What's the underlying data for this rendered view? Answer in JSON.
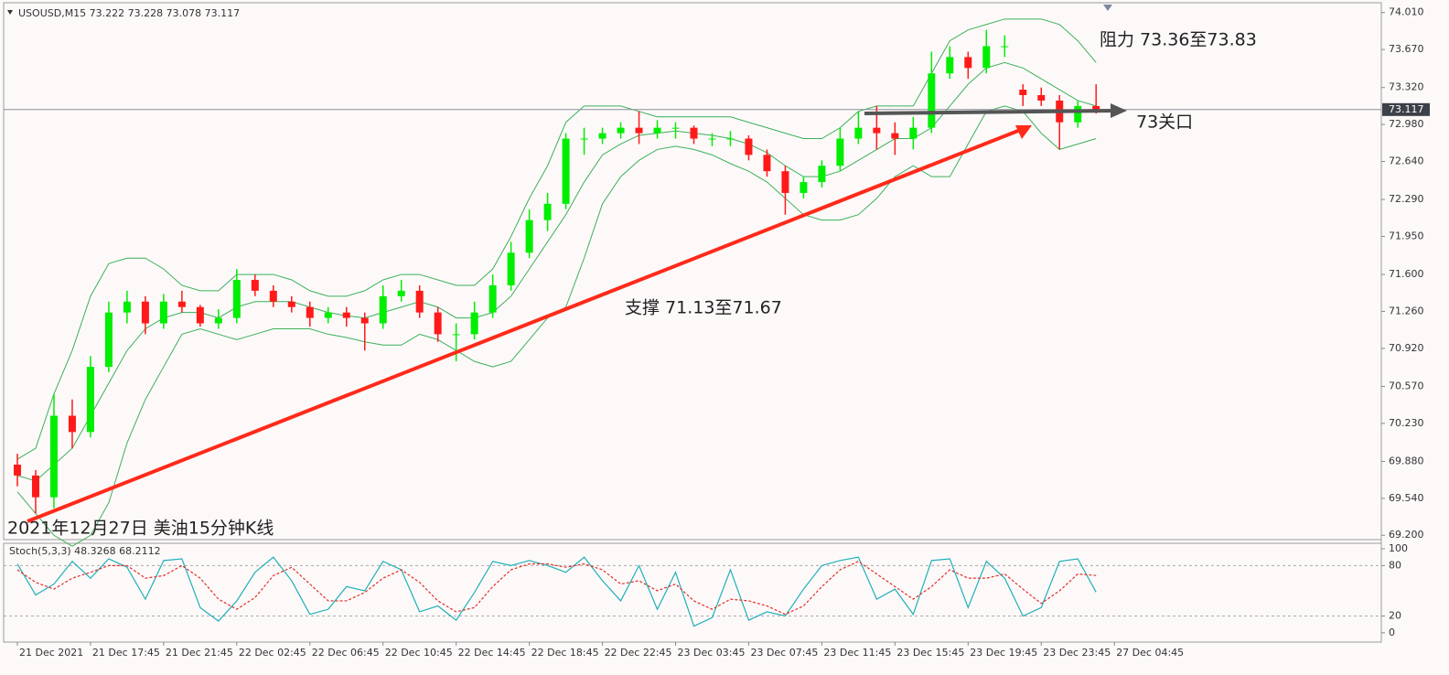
{
  "chart_data": [
    {
      "type": "candlestick",
      "title": "USOUSD,M15  73.222 73.228 73.078 73.117",
      "annotations": [
        "阻力 73.36至73.83",
        "73关口",
        "支撑 71.13至71.67",
        "2021年12月27日 美油15分钟K线"
      ],
      "xlim": [
        -0.75,
        74.6
      ],
      "xticks": [
        {
          "value": 0,
          "label": "21 Dec 2021"
        },
        {
          "value": 4,
          "label": "21 Dec 17:45"
        },
        {
          "value": 8,
          "label": "21 Dec 21:45"
        },
        {
          "value": 12,
          "label": "22 Dec 02:45"
        },
        {
          "value": 16,
          "label": "22 Dec 06:45"
        },
        {
          "value": 20,
          "label": "22 Dec 10:45"
        },
        {
          "value": 24,
          "label": "22 Dec 14:45"
        },
        {
          "value": 28,
          "label": "22 Dec 18:45"
        },
        {
          "value": 32,
          "label": "22 Dec 22:45"
        },
        {
          "value": 36,
          "label": "23 Dec 03:45"
        },
        {
          "value": 40,
          "label": "23 Dec 07:45"
        },
        {
          "value": 44,
          "label": "23 Dec 11:45"
        },
        {
          "value": 48,
          "label": "23 Dec 15:45"
        },
        {
          "value": 52,
          "label": "23 Dec 19:45"
        },
        {
          "value": 56,
          "label": "23 Dec 23:45"
        },
        {
          "value": 60,
          "label": "27 Dec 04:45"
        }
      ],
      "ylim": [
        69.16,
        74.1
      ],
      "yticks": [
        {
          "value": 74.01,
          "label": "74.010"
        },
        {
          "value": 73.67,
          "label": "73.670"
        },
        {
          "value": 73.32,
          "label": "73.320"
        },
        {
          "value": 72.98,
          "label": "72.980"
        },
        {
          "value": 72.64,
          "label": "72.640"
        },
        {
          "value": 72.29,
          "label": "72.290"
        },
        {
          "value": 71.95,
          "label": "71.950"
        },
        {
          "value": 71.6,
          "label": "71.600"
        },
        {
          "value": 71.26,
          "label": "71.260"
        },
        {
          "value": 70.92,
          "label": "70.920"
        },
        {
          "value": 70.57,
          "label": "70.570"
        },
        {
          "value": 70.23,
          "label": "70.230"
        },
        {
          "value": 69.88,
          "label": "69.880"
        },
        {
          "value": 69.54,
          "label": "69.540"
        },
        {
          "value": 69.2,
          "label": "69.200"
        }
      ],
      "current_price": 73.117,
      "up_color": "#00ee00",
      "down_color": "#ff1a1a",
      "ohlc": [
        [
          69.85,
          69.95,
          69.65,
          69.75
        ],
        [
          69.75,
          69.8,
          69.4,
          69.55
        ],
        [
          69.55,
          70.5,
          69.45,
          70.3
        ],
        [
          70.3,
          70.45,
          70.0,
          70.15
        ],
        [
          70.15,
          70.85,
          70.1,
          70.75
        ],
        [
          70.75,
          71.35,
          70.7,
          71.25
        ],
        [
          71.25,
          71.45,
          71.15,
          71.35
        ],
        [
          71.35,
          71.4,
          71.05,
          71.15
        ],
        [
          71.15,
          71.42,
          71.1,
          71.35
        ],
        [
          71.35,
          71.45,
          71.25,
          71.3
        ],
        [
          71.3,
          71.32,
          71.12,
          71.15
        ],
        [
          71.15,
          71.28,
          71.1,
          71.2
        ],
        [
          71.2,
          71.65,
          71.15,
          71.55
        ],
        [
          71.55,
          71.6,
          71.4,
          71.45
        ],
        [
          71.45,
          71.5,
          71.3,
          71.35
        ],
        [
          71.35,
          71.4,
          71.25,
          71.3
        ],
        [
          71.3,
          71.35,
          71.12,
          71.2
        ],
        [
          71.2,
          71.3,
          71.15,
          71.25
        ],
        [
          71.25,
          71.3,
          71.12,
          71.2
        ],
        [
          71.2,
          71.25,
          70.9,
          71.15
        ],
        [
          71.15,
          71.5,
          71.1,
          71.4
        ],
        [
          71.4,
          71.55,
          71.35,
          71.45
        ],
        [
          71.45,
          71.5,
          71.2,
          71.25
        ],
        [
          71.25,
          71.3,
          70.98,
          71.05
        ],
        [
          71.05,
          71.15,
          70.8,
          71.05
        ],
        [
          71.05,
          71.35,
          71.0,
          71.25
        ],
        [
          71.25,
          71.6,
          71.2,
          71.5
        ],
        [
          71.5,
          71.9,
          71.45,
          71.8
        ],
        [
          71.8,
          72.2,
          71.75,
          72.1
        ],
        [
          72.1,
          72.35,
          72.0,
          72.25
        ],
        [
          72.25,
          72.9,
          72.2,
          72.85
        ],
        [
          72.85,
          72.95,
          72.7,
          72.85
        ],
        [
          72.85,
          72.95,
          72.8,
          72.9
        ],
        [
          72.9,
          73.0,
          72.85,
          72.95
        ],
        [
          72.95,
          73.1,
          72.8,
          72.9
        ],
        [
          72.9,
          73.02,
          72.85,
          72.95
        ],
        [
          72.95,
          73.0,
          72.85,
          72.95
        ],
        [
          72.95,
          72.97,
          72.8,
          72.85
        ],
        [
          72.85,
          72.9,
          72.78,
          72.85
        ],
        [
          72.85,
          72.92,
          72.78,
          72.85
        ],
        [
          72.85,
          72.88,
          72.65,
          72.7
        ],
        [
          72.7,
          72.75,
          72.5,
          72.55
        ],
        [
          72.55,
          72.6,
          72.15,
          72.35
        ],
        [
          72.35,
          72.5,
          72.3,
          72.45
        ],
        [
          72.45,
          72.65,
          72.4,
          72.6
        ],
        [
          72.6,
          72.95,
          72.55,
          72.85
        ],
        [
          72.85,
          73.1,
          72.8,
          72.95
        ],
        [
          72.95,
          73.15,
          72.75,
          72.9
        ],
        [
          72.9,
          73.0,
          72.7,
          72.85
        ],
        [
          72.85,
          73.05,
          72.75,
          72.95
        ],
        [
          72.95,
          73.65,
          72.9,
          73.45
        ],
        [
          73.45,
          73.7,
          73.4,
          73.6
        ],
        [
          73.6,
          73.65,
          73.4,
          73.5
        ],
        [
          73.5,
          73.85,
          73.45,
          73.7
        ],
        [
          73.7,
          73.8,
          73.6,
          73.7
        ],
        [
          73.3,
          73.35,
          73.15,
          73.25
        ],
        [
          73.25,
          73.32,
          73.15,
          73.2
        ],
        [
          73.2,
          73.25,
          72.75,
          73.0
        ],
        [
          73.0,
          73.2,
          72.95,
          73.15
        ],
        [
          73.15,
          73.35,
          73.08,
          73.12
        ]
      ],
      "bands": [
        {
          "color": "#3cb05a",
          "values": [
            69.9,
            70.0,
            70.5,
            70.9,
            71.4,
            71.7,
            71.75,
            71.75,
            71.65,
            71.5,
            71.45,
            71.45,
            71.6,
            71.6,
            71.6,
            71.55,
            71.45,
            71.4,
            71.4,
            71.45,
            71.55,
            71.6,
            71.6,
            71.55,
            71.5,
            71.5,
            71.65,
            71.95,
            72.3,
            72.6,
            73.0,
            73.15,
            73.15,
            73.15,
            73.1,
            73.05,
            73.05,
            73.05,
            73.05,
            73.05,
            73.0,
            72.95,
            72.9,
            72.85,
            72.85,
            72.95,
            73.1,
            73.15,
            73.15,
            73.15,
            73.45,
            73.75,
            73.85,
            73.9,
            73.95,
            73.95,
            73.95,
            73.9,
            73.75,
            73.55
          ]
        },
        {
          "color": "#3cb05a",
          "values": [
            69.75,
            69.7,
            69.85,
            70.0,
            70.3,
            70.6,
            70.9,
            71.1,
            71.2,
            71.25,
            71.25,
            71.2,
            71.3,
            71.35,
            71.35,
            71.35,
            71.3,
            71.25,
            71.22,
            71.2,
            71.25,
            71.3,
            71.35,
            71.3,
            71.2,
            71.2,
            71.25,
            71.4,
            71.65,
            71.9,
            72.15,
            72.45,
            72.7,
            72.8,
            72.88,
            72.9,
            72.92,
            72.9,
            72.88,
            72.85,
            72.8,
            72.72,
            72.6,
            72.5,
            72.5,
            72.55,
            72.65,
            72.75,
            72.85,
            72.85,
            72.95,
            73.15,
            73.35,
            73.5,
            73.55,
            73.5,
            73.4,
            73.3,
            73.2,
            73.15
          ]
        },
        {
          "color": "#3cb05a",
          "values": [
            69.6,
            69.4,
            69.2,
            69.1,
            69.2,
            69.5,
            70.05,
            70.45,
            70.75,
            71.05,
            71.1,
            71.05,
            71.0,
            71.05,
            71.1,
            71.1,
            71.1,
            71.05,
            71.02,
            70.98,
            70.95,
            70.95,
            71.05,
            71.0,
            70.9,
            70.8,
            70.75,
            70.8,
            71.0,
            71.2,
            71.3,
            71.75,
            72.25,
            72.5,
            72.65,
            72.75,
            72.78,
            72.75,
            72.7,
            72.62,
            72.55,
            72.45,
            72.3,
            72.15,
            72.1,
            72.1,
            72.15,
            72.3,
            72.5,
            72.6,
            72.5,
            72.5,
            72.8,
            73.1,
            73.15,
            73.1,
            72.9,
            72.75,
            72.8,
            72.85
          ]
        }
      ]
    },
    {
      "type": "line",
      "title": "Stoch(5,3,3) 48.3268 68.2112",
      "ylim": [
        -11,
        106.5
      ],
      "yticks": [
        100,
        80,
        20,
        0
      ],
      "series": [
        {
          "color": "#1fb0b8",
          "dashed": false,
          "values": [
            82,
            45,
            58,
            85,
            65,
            88,
            78,
            40,
            86,
            88,
            30,
            14,
            38,
            72,
            90,
            62,
            22,
            28,
            55,
            50,
            85,
            75,
            25,
            32,
            15,
            48,
            85,
            80,
            86,
            80,
            72,
            90,
            62,
            38,
            80,
            28,
            72,
            8,
            18,
            75,
            15,
            25,
            20,
            52,
            80,
            86,
            90,
            40,
            52,
            22,
            86,
            88,
            30,
            85,
            65,
            20,
            30,
            85,
            88,
            48.33
          ]
        },
        {
          "color": "#e0302a",
          "dashed": true,
          "values": [
            75,
            60,
            52,
            65,
            72,
            80,
            80,
            65,
            68,
            80,
            65,
            40,
            28,
            42,
            68,
            78,
            58,
            38,
            38,
            48,
            65,
            75,
            60,
            38,
            25,
            30,
            55,
            75,
            82,
            82,
            78,
            82,
            75,
            58,
            62,
            50,
            58,
            38,
            28,
            40,
            38,
            32,
            22,
            32,
            55,
            75,
            85,
            70,
            55,
            40,
            55,
            75,
            65,
            65,
            70,
            52,
            35,
            50,
            70,
            68.21
          ]
        }
      ]
    }
  ]
}
